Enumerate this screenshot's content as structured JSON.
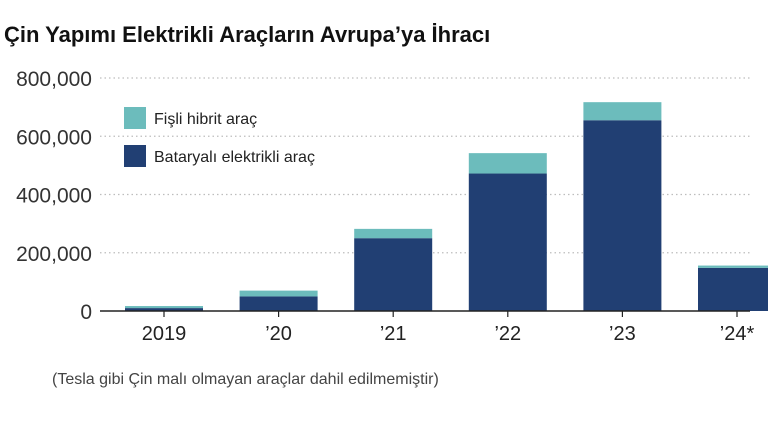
{
  "chart_data": {
    "type": "bar",
    "stacked": true,
    "title": "Çin Yapımı Elektrikli Araçların Avrupa’ya İhracı",
    "categories": [
      "2019",
      "’20",
      "’21",
      "’22",
      "’23",
      "’24*"
    ],
    "series": [
      {
        "name": "Bataryalı elektrikli araç",
        "color": "#213f73",
        "values": [
          10000,
          50000,
          250000,
          472000,
          655000,
          148000
        ]
      },
      {
        "name": "Fişli hibrit araç",
        "color": "#6cbcbc",
        "values": [
          7000,
          20000,
          32000,
          70000,
          62000,
          8000
        ]
      }
    ],
    "y_ticks": [
      "0",
      "200,000",
      "400,000",
      "600,000",
      "800,000"
    ],
    "ylim": [
      0,
      800000
    ],
    "grid": "horizontal dotted",
    "legend_position": "top-left",
    "note": "(Tesla gibi Çin malı olmayan araçlar dahil edilmemiştir)"
  }
}
